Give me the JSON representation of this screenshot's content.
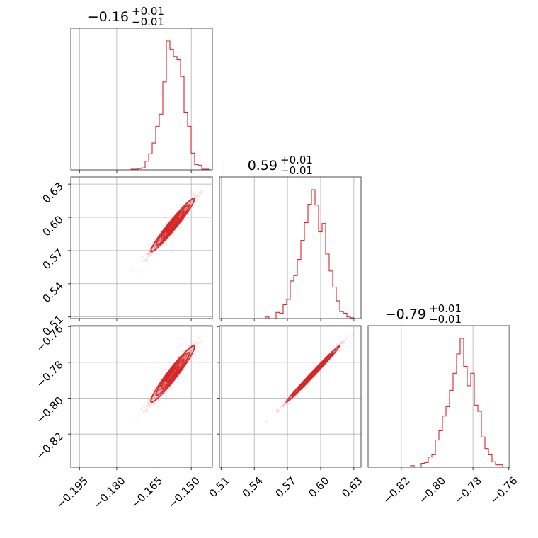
{
  "chart_data": {
    "type": "corner",
    "color": "#d62728",
    "parameters": [
      {
        "title_center": "−0.16",
        "title_plus": "+0.01",
        "title_minus": "−0.01",
        "range": [
          -0.1985,
          -0.1415
        ],
        "ticks": [
          -0.195,
          -0.18,
          -0.165,
          -0.15
        ],
        "tick_labels": [
          "−0.195",
          "−0.180",
          "−0.165",
          "−0.150"
        ],
        "mean": -0.1575,
        "sd": 0.0042
      },
      {
        "title_center": "0.59",
        "title_plus": "+0.01",
        "title_minus": "−0.01",
        "range": [
          0.5085,
          0.6365
        ],
        "ticks": [
          0.51,
          0.54,
          0.57,
          0.6,
          0.63
        ],
        "tick_labels": [
          "0.51",
          "0.54",
          "0.57",
          "0.60",
          "0.63"
        ],
        "mean": 0.593,
        "sd": 0.0115
      },
      {
        "title_center": "−0.79",
        "title_plus": "+0.01",
        "title_minus": "−0.01",
        "range": [
          -0.8385,
          -0.7595
        ],
        "ticks": [
          -0.82,
          -0.8,
          -0.78,
          -0.76
        ],
        "tick_labels": [
          "−0.82",
          "−0.80",
          "−0.78",
          "−0.76"
        ],
        "mean": -0.7865,
        "sd": 0.0075
      }
    ],
    "correlations": {
      "1-0": 0.97,
      "2-0": 0.96,
      "2-1": 0.995
    },
    "hist_bins": 40,
    "grid": true
  }
}
